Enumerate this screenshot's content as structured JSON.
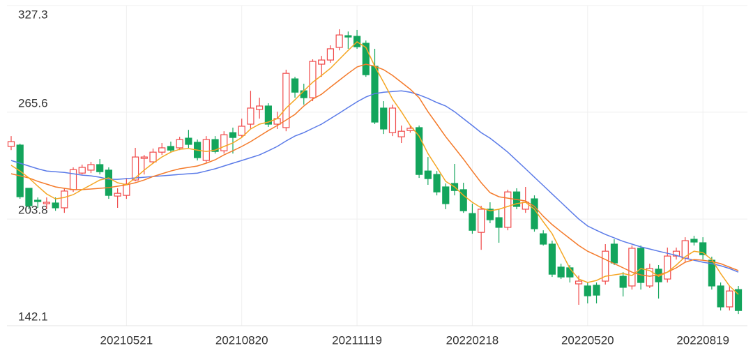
{
  "chart_data": {
    "type": "candlestick",
    "categories": [
      null,
      null,
      null,
      null,
      null,
      null,
      null,
      null,
      null,
      null,
      null,
      null,
      null,
      "20210521",
      null,
      null,
      null,
      null,
      null,
      null,
      null,
      null,
      null,
      null,
      null,
      null,
      "20210820",
      null,
      null,
      null,
      null,
      null,
      null,
      null,
      null,
      null,
      null,
      null,
      null,
      "20211119",
      null,
      null,
      null,
      null,
      null,
      null,
      null,
      null,
      null,
      null,
      null,
      null,
      "20220218",
      null,
      null,
      null,
      null,
      null,
      null,
      null,
      null,
      null,
      null,
      null,
      null,
      "20220520",
      null,
      null,
      null,
      null,
      null,
      null,
      null,
      null,
      null,
      null,
      null,
      null,
      "20220819",
      null,
      null,
      null,
      null
    ],
    "open": [
      245.8,
      246.6,
      221.6,
      214.7,
      212.7,
      213.1,
      210.3,
      220.8,
      230.4,
      232.1,
      235.3,
      232.1,
      217.1,
      217.5,
      226.4,
      238.9,
      236.9,
      242.5,
      245.8,
      245.0,
      250.6,
      248.2,
      237.7,
      249.8,
      243.3,
      253.8,
      252.2,
      258.7,
      267.2,
      269.2,
      258.7,
      256.7,
      284.9,
      278.0,
      274.0,
      293.4,
      295.8,
      303.1,
      309.9,
      309.5,
      305.5,
      292.2,
      268.0,
      253.8,
      251.4,
      255.0,
      256.7,
      231.6,
      229.6,
      222.4,
      224.4,
      220.8,
      207.0,
      196.1,
      209.5,
      204.6,
      199.0,
      219.5,
      209.5,
      215.5,
      195.3,
      189.3,
      176.0,
      175.6,
      166.3,
      165.1,
      165.5,
      167.9,
      189.3,
      170.7,
      165.1,
      186.9,
      165.1,
      174.8,
      169.1,
      182.4,
      181.2,
      192.1,
      190.1,
      180.0,
      165.1,
      153.0,
      163.0
    ],
    "high": [
      251.8,
      247.4,
      221.6,
      216.3,
      216.3,
      216.3,
      221.6,
      233.7,
      235.3,
      236.9,
      238.5,
      233.7,
      221.6,
      227.6,
      245.0,
      240.9,
      244.6,
      247.8,
      248.6,
      251.4,
      255.4,
      249.8,
      251.8,
      251.8,
      254.6,
      256.7,
      261.9,
      278.0,
      274.0,
      270.8,
      265.9,
      290.2,
      286.1,
      282.1,
      296.2,
      298.2,
      304.3,
      313.6,
      312.3,
      313.2,
      307.1,
      302.3,
      272.0,
      270.0,
      257.9,
      257.9,
      257.9,
      239.7,
      231.6,
      224.4,
      235.7,
      224.8,
      212.7,
      211.5,
      213.5,
      209.5,
      220.8,
      221.6,
      222.4,
      217.5,
      197.3,
      191.3,
      178.0,
      177.2,
      171.1,
      167.1,
      167.1,
      189.3,
      192.1,
      173.1,
      188.5,
      188.5,
      178.0,
      177.2,
      187.3,
      187.3,
      193.3,
      194.1,
      193.3,
      182.0,
      167.1,
      165.1,
      165.1
    ],
    "low": [
      243.7,
      215.5,
      209.5,
      210.3,
      209.5,
      208.6,
      207.4,
      219.5,
      229.6,
      230.4,
      229.6,
      215.5,
      210.3,
      215.5,
      225.6,
      229.6,
      235.7,
      240.9,
      242.5,
      243.7,
      245.0,
      237.7,
      236.5,
      241.7,
      241.7,
      241.7,
      251.0,
      255.9,
      261.9,
      257.1,
      255.9,
      254.6,
      274.0,
      270.0,
      272.0,
      286.1,
      294.2,
      301.4,
      302.3,
      302.3,
      286.1,
      258.7,
      253.0,
      251.8,
      247.8,
      253.8,
      227.6,
      223.6,
      217.5,
      209.5,
      217.5,
      207.4,
      195.3,
      186.0,
      201.4,
      190.1,
      197.3,
      209.5,
      207.4,
      196.5,
      188.5,
      170.3,
      169.1,
      167.1,
      154.2,
      155.0,
      155.0,
      165.9,
      177.2,
      159.0,
      163.0,
      163.0,
      163.9,
      157.8,
      167.1,
      180.4,
      179.2,
      188.5,
      180.4,
      163.0,
      150.9,
      150.9,
      148.9
    ],
    "close": [
      248.6,
      216.7,
      211.5,
      213.9,
      213.5,
      210.3,
      220.0,
      232.4,
      233.7,
      235.3,
      231.2,
      217.5,
      218.7,
      224.0,
      239.7,
      239.7,
      242.5,
      245.0,
      243.7,
      249.8,
      247.0,
      239.3,
      249.8,
      242.9,
      252.6,
      251.0,
      257.5,
      268.0,
      269.2,
      258.7,
      261.9,
      288.1,
      277.2,
      274.0,
      295.0,
      295.8,
      302.3,
      310.3,
      309.1,
      303.5,
      287.3,
      259.9,
      255.9,
      268.0,
      254.6,
      256.3,
      229.6,
      227.2,
      219.5,
      212.7,
      220.3,
      208.6,
      197.3,
      209.5,
      203.4,
      199.0,
      219.5,
      211.1,
      213.5,
      198.2,
      189.3,
      171.9,
      170.3,
      170.3,
      167.9,
      159.4,
      159.8,
      185.2,
      178.4,
      164.3,
      186.9,
      167.1,
      175.2,
      167.5,
      182.4,
      185.2,
      191.3,
      190.5,
      183.2,
      165.1,
      153.0,
      162.2,
      150.9
    ],
    "up_color": "#f04848",
    "down_color": "#13a55c",
    "series": [
      {
        "color": "#5b7be8",
        "values": [
          237.7,
          236.1,
          234.5,
          232.9,
          231.6,
          231.2,
          230.8,
          230.0,
          229.2,
          228.8,
          228.0,
          226.8,
          226.8,
          227.2,
          227.6,
          228.0,
          228.4,
          228.8,
          229.2,
          229.6,
          230.0,
          230.4,
          231.6,
          232.9,
          234.5,
          236.1,
          237.7,
          239.3,
          240.9,
          243.3,
          245.8,
          249.0,
          251.8,
          253.8,
          256.3,
          258.7,
          261.9,
          265.1,
          268.4,
          271.6,
          274.4,
          276.4,
          277.2,
          277.6,
          278.0,
          277.2,
          275.6,
          273.6,
          271.2,
          269.2,
          265.9,
          261.9,
          257.9,
          253.8,
          250.6,
          246.6,
          242.5,
          237.7,
          232.9,
          228.0,
          223.2,
          218.3,
          213.5,
          208.6,
          203.8,
          199.8,
          197.3,
          194.9,
          192.9,
          190.9,
          189.3,
          187.7,
          186.5,
          185.2,
          184.0,
          182.8,
          181.2,
          180.0,
          178.8,
          178.0,
          176.8,
          175.2,
          173.1
        ]
      },
      {
        "color": "#f47a2a",
        "values": [
          230.0,
          228.8,
          227.6,
          225.6,
          224.0,
          222.4,
          221.6,
          220.8,
          220.8,
          221.2,
          221.6,
          222.0,
          222.8,
          223.6,
          224.8,
          226.4,
          228.4,
          230.0,
          231.6,
          232.9,
          233.7,
          234.5,
          236.1,
          238.1,
          240.9,
          243.3,
          245.8,
          248.6,
          251.8,
          255.0,
          257.9,
          261.1,
          264.3,
          269.2,
          273.2,
          276.0,
          280.1,
          284.1,
          288.1,
          291.8,
          293.4,
          292.2,
          290.2,
          286.9,
          282.9,
          278.9,
          274.0,
          265.9,
          258.7,
          251.4,
          245.0,
          238.5,
          231.6,
          224.8,
          219.1,
          216.7,
          215.9,
          215.1,
          214.3,
          211.1,
          205.4,
          200.6,
          196.5,
          192.5,
          188.5,
          185.2,
          182.8,
          180.4,
          178.0,
          175.6,
          173.1,
          171.5,
          170.7,
          171.5,
          173.1,
          175.6,
          178.8,
          180.4,
          180.0,
          179.2,
          178.0,
          176.0,
          174.0
        ]
      },
      {
        "color": "#f5a623",
        "values": [
          234.9,
          231.6,
          227.6,
          222.8,
          218.3,
          215.5,
          216.3,
          217.9,
          220.8,
          223.6,
          226.4,
          227.6,
          224.8,
          223.6,
          227.6,
          232.1,
          236.1,
          239.7,
          242.5,
          244.2,
          244.6,
          243.7,
          242.9,
          243.7,
          245.8,
          247.8,
          251.0,
          255.9,
          258.7,
          259.9,
          261.9,
          268.0,
          272.8,
          278.0,
          282.9,
          286.9,
          291.0,
          296.2,
          301.4,
          306.3,
          303.1,
          292.2,
          282.9,
          273.2,
          265.9,
          257.9,
          251.8,
          241.7,
          233.7,
          225.6,
          222.4,
          217.5,
          213.5,
          210.3,
          208.6,
          209.5,
          211.1,
          212.7,
          213.5,
          209.5,
          202.2,
          195.3,
          185.2,
          175.2,
          169.1,
          167.1,
          168.3,
          170.7,
          171.5,
          172.3,
          171.1,
          175.2,
          174.0,
          170.7,
          173.1,
          177.2,
          182.0,
          185.2,
          184.4,
          180.4,
          172.3,
          165.1,
          160.2
        ]
      }
    ],
    "ylim": [
      142.1,
      327.3
    ],
    "yticks": [
      142.1,
      203.8,
      265.6,
      327.3
    ],
    "grid": true
  }
}
